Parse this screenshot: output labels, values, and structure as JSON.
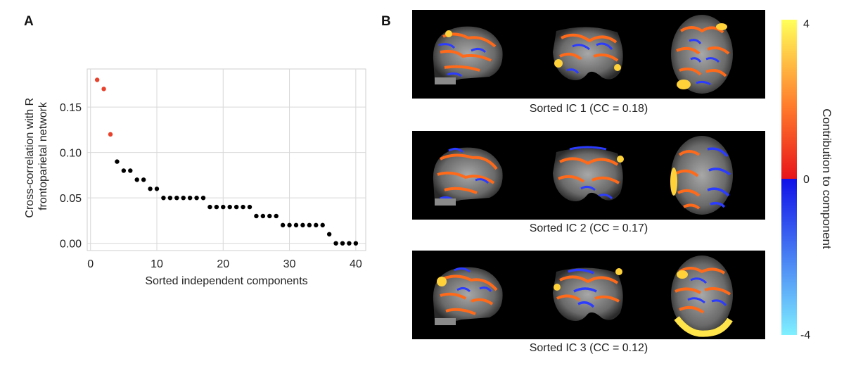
{
  "panels": {
    "a_label": "A",
    "b_label": "B"
  },
  "chart_data": {
    "type": "scatter",
    "xlabel": "Sorted independent components",
    "ylabel_lines": [
      "Cross-correlation with R",
      "frontoparietal network"
    ],
    "xlim": [
      -0.5,
      41.5
    ],
    "ylim": [
      -0.008,
      0.192
    ],
    "xticks": [
      0,
      10,
      20,
      30,
      40
    ],
    "yticks": [
      0.0,
      0.05,
      0.1,
      0.15
    ],
    "ytick_labels": [
      "0.00",
      "0.05",
      "0.10",
      "0.15"
    ],
    "grid": true,
    "highlight_color": "#e8412c",
    "point_color": "#000000",
    "highlighted_count": 3,
    "x": [
      1,
      2,
      3,
      4,
      5,
      6,
      7,
      8,
      9,
      10,
      11,
      12,
      13,
      14,
      15,
      16,
      17,
      18,
      19,
      20,
      21,
      22,
      23,
      24,
      25,
      26,
      27,
      28,
      29,
      30,
      31,
      32,
      33,
      34,
      35,
      36,
      37,
      38,
      39,
      40
    ],
    "y": [
      0.18,
      0.17,
      0.12,
      0.09,
      0.08,
      0.08,
      0.07,
      0.07,
      0.06,
      0.06,
      0.05,
      0.05,
      0.05,
      0.05,
      0.05,
      0.05,
      0.05,
      0.04,
      0.04,
      0.04,
      0.04,
      0.04,
      0.04,
      0.04,
      0.03,
      0.03,
      0.03,
      0.03,
      0.02,
      0.02,
      0.02,
      0.02,
      0.02,
      0.02,
      0.02,
      0.01,
      0.0,
      0.0,
      0.0,
      0.0
    ]
  },
  "brain_maps": [
    {
      "caption": "Sorted IC 1 (CC = 0.18)"
    },
    {
      "caption": "Sorted IC 2 (CC = 0.17)"
    },
    {
      "caption": "Sorted IC 3 (CC = 0.12)"
    }
  ],
  "colorbar": {
    "label": "Contribution to component",
    "max_label": "4",
    "mid_label": "0",
    "min_label": "-4",
    "colors": {
      "top": "#ffff5a",
      "upper_mid": "#ff7a2a",
      "zero_pos": "#e8141a",
      "zero_neg": "#1010e8",
      "bottom": "#7ff0ff"
    }
  }
}
